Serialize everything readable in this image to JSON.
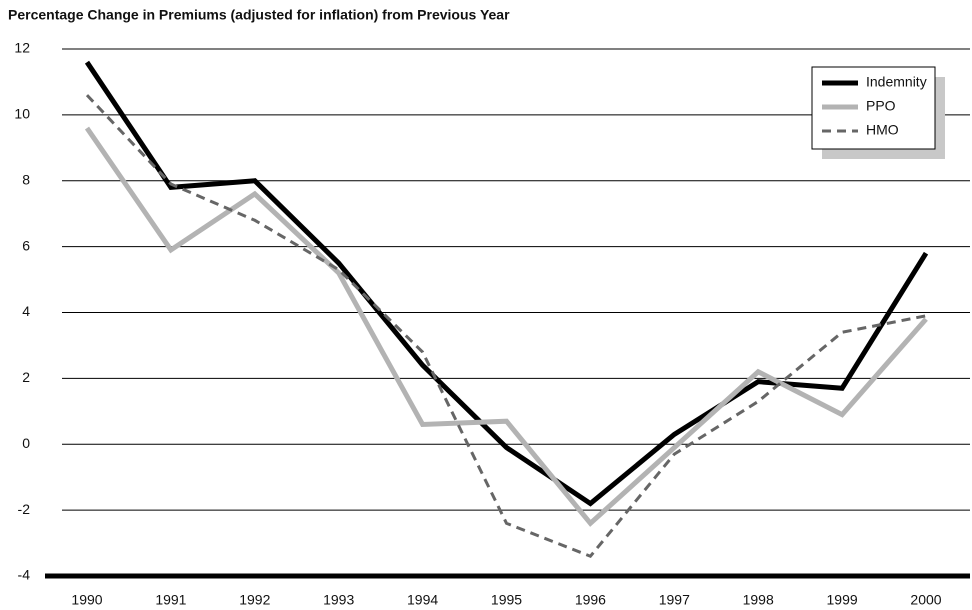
{
  "chart_data": {
    "type": "line",
    "title": "Percentage Change in Premiums (adjusted for inflation) from Previous Year",
    "categories": [
      "1990",
      "1991",
      "1992",
      "1993",
      "1994",
      "1995",
      "1996",
      "1997",
      "1998",
      "1999",
      "2000"
    ],
    "series": [
      {
        "name": "Indemnity",
        "color": "#000000",
        "style": "solid",
        "width": 5,
        "values": [
          11.6,
          7.8,
          8.0,
          5.5,
          2.4,
          -0.1,
          -1.8,
          0.3,
          1.9,
          1.7,
          5.8
        ]
      },
      {
        "name": "PPO",
        "color": "#b3b3b3",
        "style": "solid",
        "width": 5,
        "values": [
          9.6,
          5.9,
          7.6,
          5.2,
          0.6,
          0.7,
          -2.4,
          -0.1,
          2.2,
          0.9,
          3.8
        ]
      },
      {
        "name": "HMO",
        "color": "#666666",
        "style": "dashed",
        "width": 3,
        "values": [
          10.6,
          7.9,
          6.8,
          5.3,
          2.8,
          -2.4,
          -3.4,
          -0.3,
          1.3,
          3.4,
          3.9
        ]
      }
    ],
    "ylim": [
      -4,
      12
    ],
    "yticks": [
      -4,
      -2,
      0,
      2,
      4,
      6,
      8,
      10,
      12
    ],
    "grid": true,
    "legend": "top-right"
  }
}
